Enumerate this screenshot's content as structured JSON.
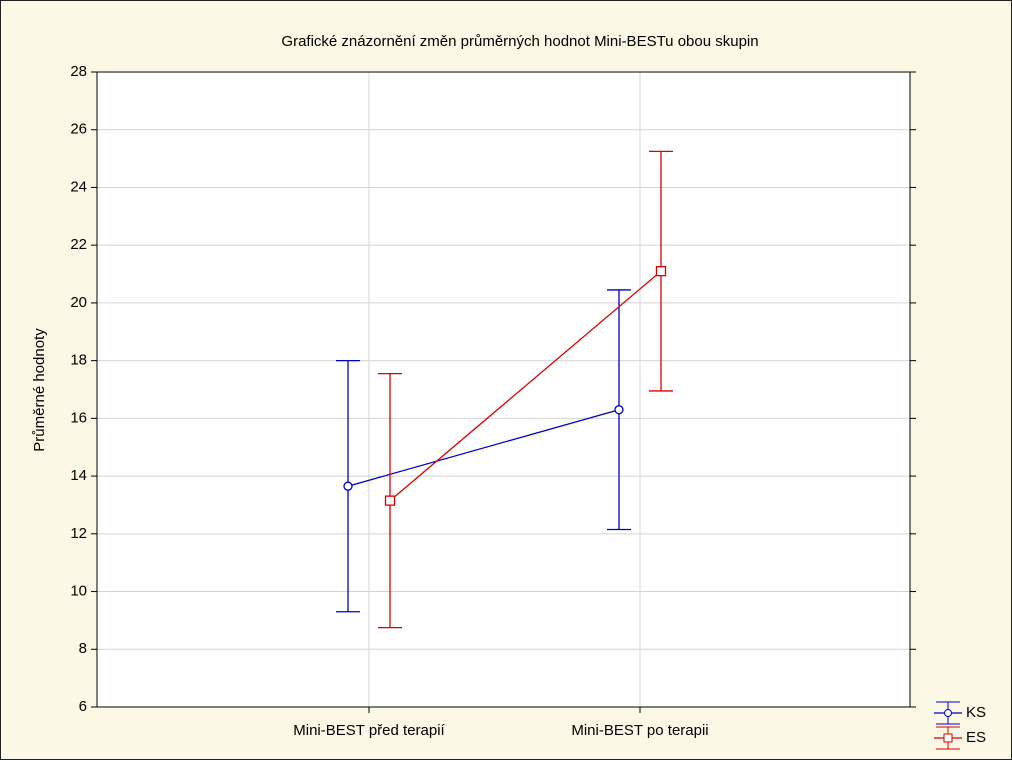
{
  "chart_data": {
    "type": "line",
    "title": "Grafické znázornění změn průměrných hodnot Mini-BESTu obou skupin",
    "ylabel": "Průměrné hodnoty",
    "categories": [
      "Mini-BEST před terapií",
      "Mini-BEST po terapii"
    ],
    "series": [
      {
        "name": "KS",
        "color": "#0000cc",
        "marker": "circle",
        "values": [
          13.65,
          16.3
        ],
        "errors": [
          4.35,
          4.15
        ]
      },
      {
        "name": "ES",
        "color": "#dd0000",
        "marker": "square",
        "values": [
          13.15,
          21.1
        ],
        "errors": [
          4.4,
          4.15
        ]
      }
    ],
    "ylim": [
      6,
      28
    ],
    "yticks": [
      6,
      8,
      10,
      12,
      14,
      16,
      18,
      20,
      22,
      24,
      26,
      28
    ],
    "grid": true,
    "legend": "lower right"
  }
}
